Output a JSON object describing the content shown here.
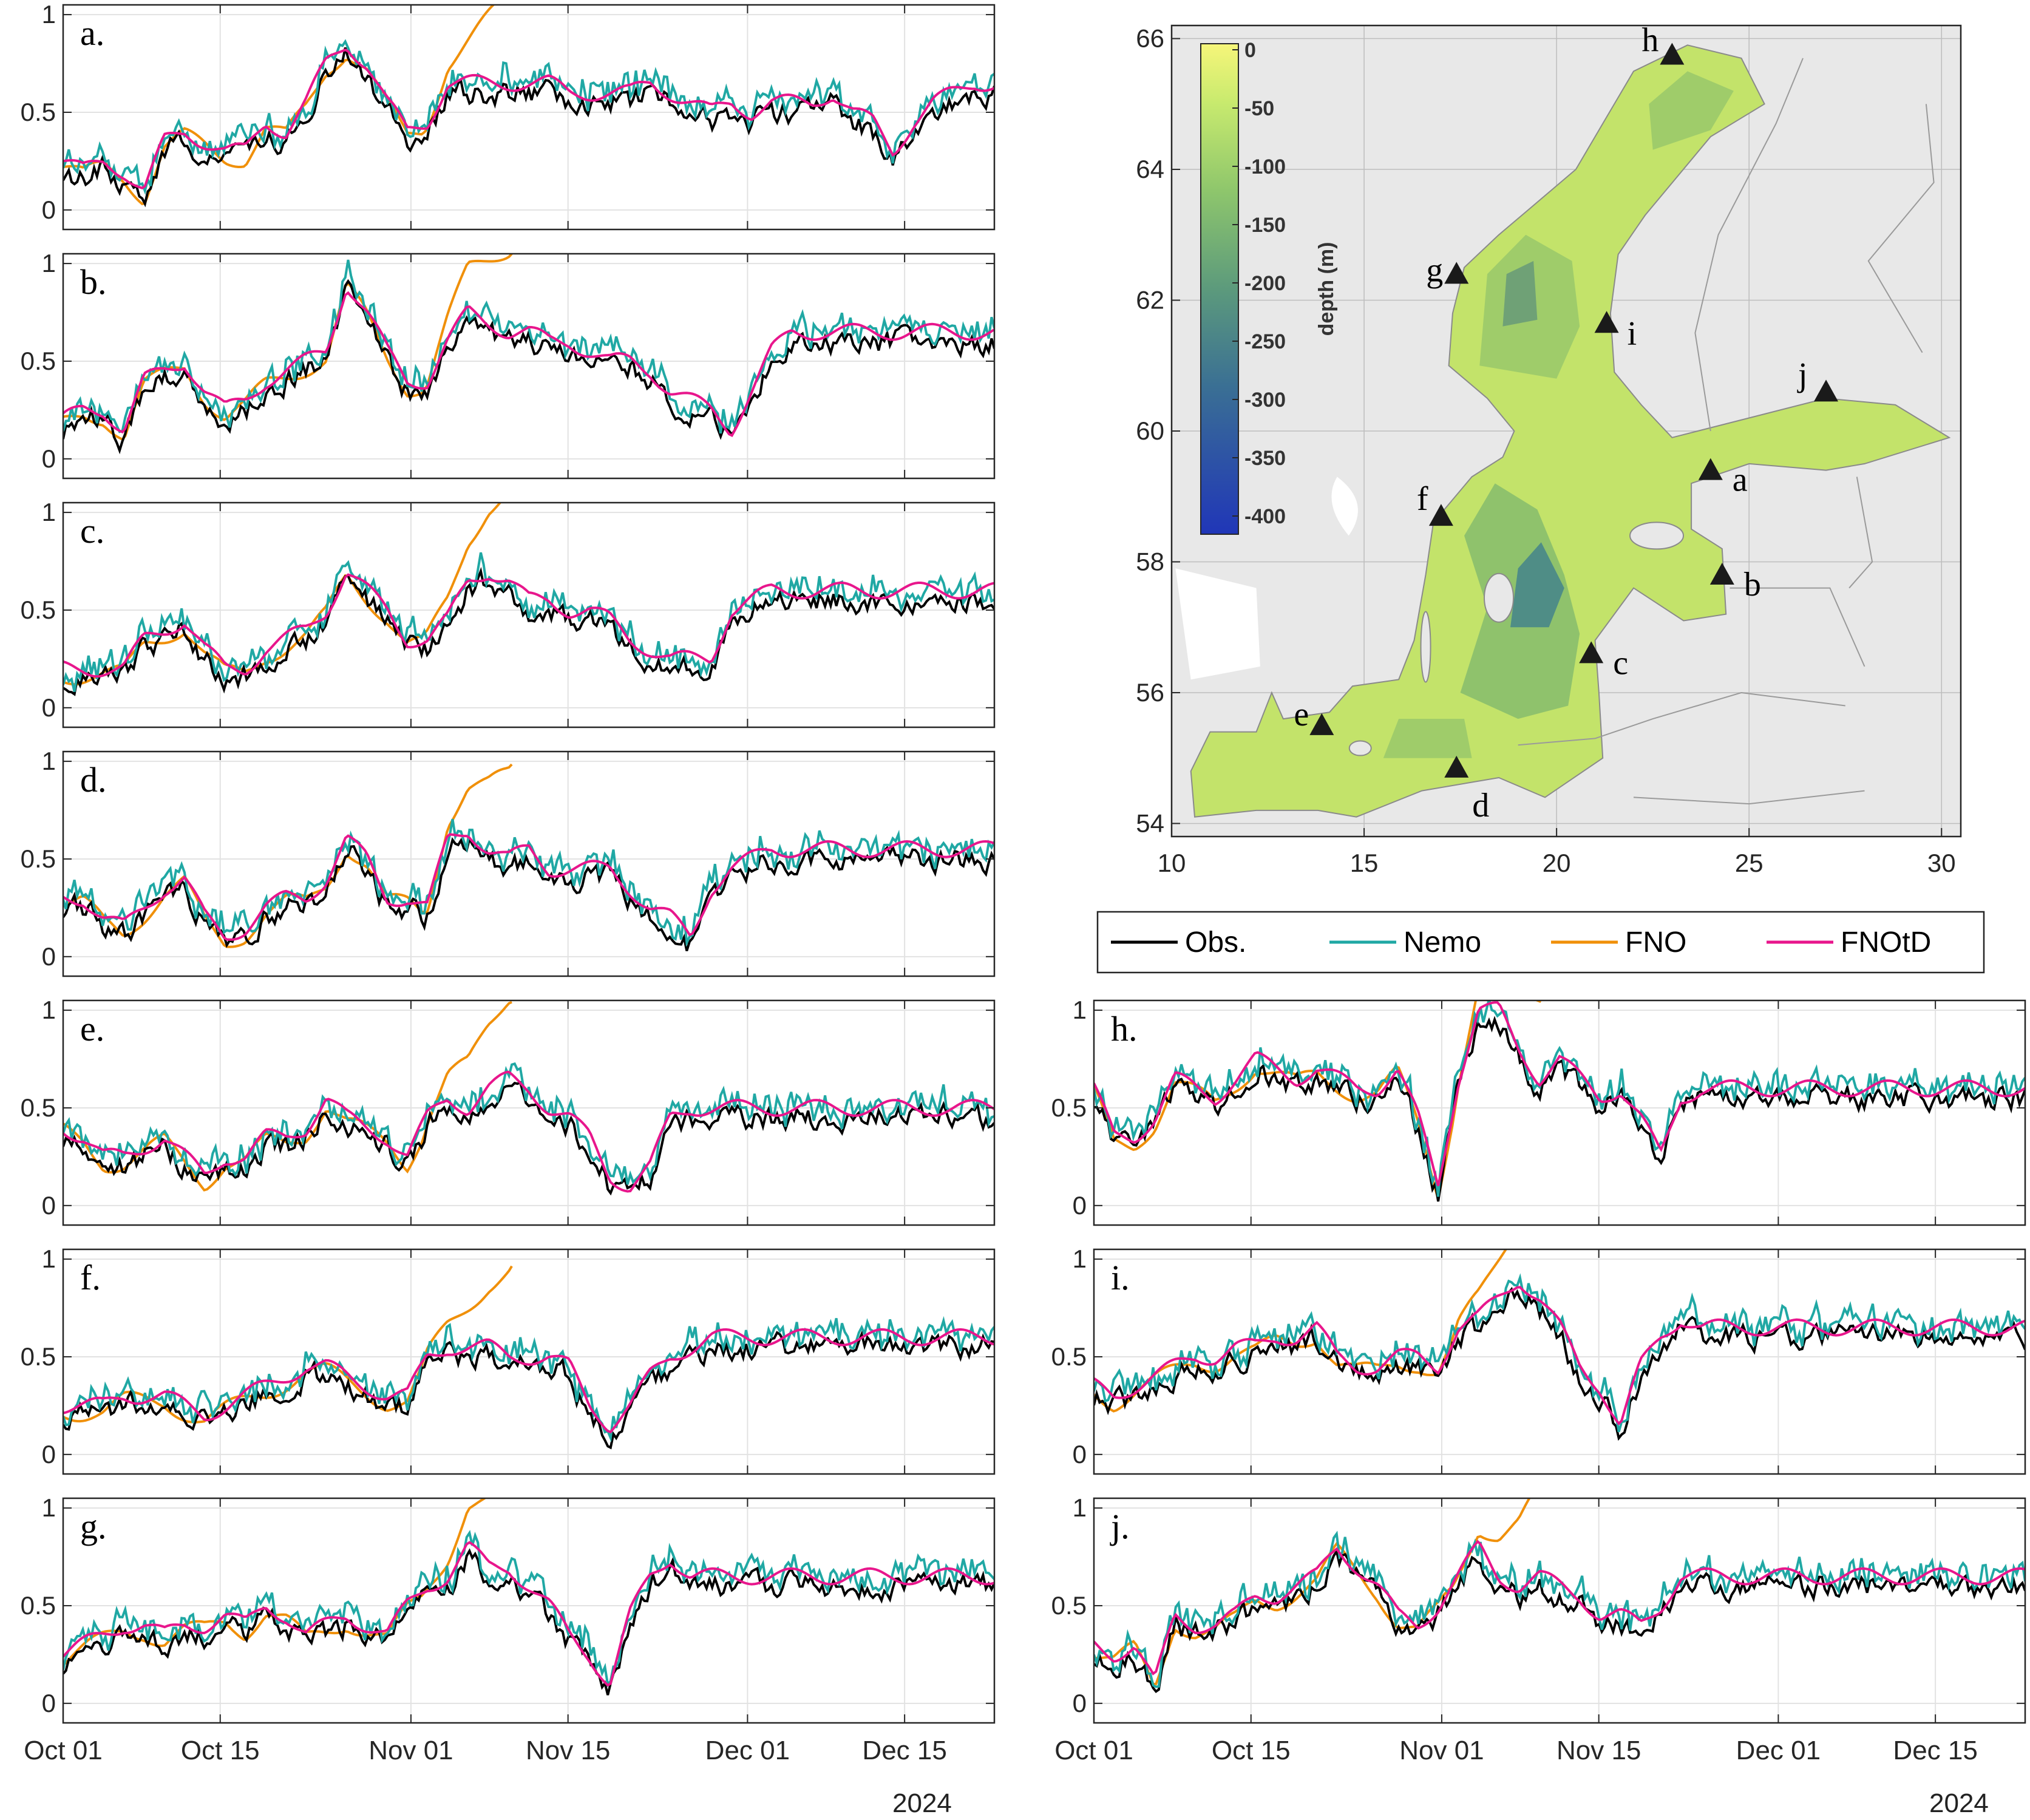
{
  "figure": {
    "year_label": "2024",
    "legend": [
      {
        "key": "obs",
        "label": "Obs.",
        "color": "#000000"
      },
      {
        "key": "nemo",
        "label": "Nemo",
        "color": "#20a8a4"
      },
      {
        "key": "fno",
        "label": "FNO",
        "color": "#f0900a"
      },
      {
        "key": "fnotd",
        "label": "FNOtD",
        "color": "#e8168c"
      }
    ]
  },
  "chart_data": [
    {
      "type": "line",
      "panel": "a.",
      "xlim": [
        "2024-10-01",
        "2024-12-23"
      ],
      "ylim": [
        -0.1,
        1.05
      ],
      "yticks": [
        0,
        0.5,
        1
      ],
      "xticks": [
        "Oct 01",
        "Oct 15",
        "Nov 01",
        "Nov 15",
        "Dec 01",
        "Dec 15"
      ],
      "base": [
        0.2,
        0.15,
        0.2,
        0.15,
        0.05,
        0.3,
        0.35,
        0.3,
        0.25,
        0.25,
        0.4,
        0.35,
        0.5,
        0.7,
        0.8,
        0.7,
        0.5,
        0.35,
        0.4,
        0.6,
        0.6,
        0.6,
        0.6,
        0.6,
        0.6,
        0.55,
        0.55,
        0.55,
        0.55,
        0.6,
        0.55,
        0.5,
        0.45,
        0.5,
        0.45,
        0.5,
        0.5,
        0.5,
        0.55,
        0.45,
        0.4,
        0.25,
        0.4,
        0.5,
        0.55,
        0.6,
        0.6
      ],
      "fno_end": "2024-11-12"
    },
    {
      "type": "line",
      "panel": "b.",
      "xlim": [
        "2024-10-01",
        "2024-12-23"
      ],
      "ylim": [
        -0.1,
        1.05
      ],
      "yticks": [
        0,
        0.5,
        1
      ],
      "xticks": [
        "Oct 01",
        "Oct 15",
        "Nov 01",
        "Nov 15",
        "Dec 01",
        "Dec 15"
      ],
      "base": [
        0.15,
        0.2,
        0.2,
        0.1,
        0.35,
        0.4,
        0.45,
        0.3,
        0.2,
        0.25,
        0.35,
        0.4,
        0.45,
        0.5,
        0.85,
        0.7,
        0.5,
        0.35,
        0.35,
        0.55,
        0.7,
        0.65,
        0.6,
        0.6,
        0.55,
        0.55,
        0.5,
        0.45,
        0.45,
        0.4,
        0.3,
        0.25,
        0.2,
        0.1,
        0.3,
        0.5,
        0.6,
        0.6,
        0.6,
        0.6,
        0.6,
        0.6,
        0.6,
        0.6,
        0.6,
        0.6,
        0.6
      ]
    },
    {
      "type": "line",
      "panel": "c.",
      "xlim": [
        "2024-10-01",
        "2024-12-23"
      ],
      "ylim": [
        -0.1,
        1.05
      ],
      "yticks": [
        0,
        0.5,
        1
      ],
      "xticks": [
        "Oct 01",
        "Oct 15",
        "Nov 01",
        "Nov 15",
        "Dec 01",
        "Dec 15"
      ],
      "base": [
        0.15,
        0.15,
        0.15,
        0.15,
        0.3,
        0.35,
        0.4,
        0.25,
        0.15,
        0.15,
        0.25,
        0.3,
        0.35,
        0.45,
        0.65,
        0.55,
        0.45,
        0.3,
        0.3,
        0.4,
        0.6,
        0.65,
        0.6,
        0.5,
        0.5,
        0.45,
        0.45,
        0.4,
        0.3,
        0.25,
        0.2,
        0.2,
        0.2,
        0.45,
        0.5,
        0.55,
        0.55,
        0.55,
        0.55,
        0.55,
        0.55,
        0.55,
        0.55,
        0.55,
        0.55,
        0.55,
        0.55
      ]
    },
    {
      "type": "line",
      "panel": "d.",
      "xlim": [
        "2024-10-01",
        "2024-12-23"
      ],
      "ylim": [
        -0.1,
        1.05
      ],
      "yticks": [
        0,
        0.5,
        1
      ],
      "xticks": [
        "Oct 01",
        "Oct 15",
        "Nov 01",
        "Nov 15",
        "Dec 01",
        "Dec 15"
      ],
      "base": [
        0.25,
        0.25,
        0.15,
        0.1,
        0.2,
        0.3,
        0.35,
        0.15,
        0.05,
        0.1,
        0.2,
        0.25,
        0.25,
        0.35,
        0.55,
        0.45,
        0.25,
        0.25,
        0.2,
        0.55,
        0.6,
        0.5,
        0.45,
        0.5,
        0.4,
        0.4,
        0.4,
        0.4,
        0.3,
        0.2,
        0.15,
        0.05,
        0.3,
        0.4,
        0.45,
        0.5,
        0.5,
        0.5,
        0.5,
        0.5,
        0.5,
        0.5,
        0.5,
        0.5,
        0.5,
        0.5,
        0.5
      ]
    },
    {
      "type": "line",
      "panel": "e.",
      "xlim": [
        "2024-10-01",
        "2024-12-23"
      ],
      "ylim": [
        -0.1,
        1.05
      ],
      "yticks": [
        0,
        0.5,
        1
      ],
      "xticks": [
        "Oct 01",
        "Oct 15",
        "Nov 01",
        "Nov 15",
        "Dec 01",
        "Dec 15"
      ],
      "base": [
        0.35,
        0.3,
        0.2,
        0.2,
        0.25,
        0.3,
        0.2,
        0.1,
        0.2,
        0.2,
        0.3,
        0.3,
        0.35,
        0.5,
        0.4,
        0.35,
        0.3,
        0.2,
        0.4,
        0.5,
        0.45,
        0.55,
        0.6,
        0.55,
        0.45,
        0.4,
        0.3,
        0.1,
        0.05,
        0.15,
        0.4,
        0.45,
        0.45,
        0.45,
        0.45,
        0.45,
        0.45,
        0.45,
        0.45,
        0.45,
        0.45,
        0.45,
        0.45,
        0.45,
        0.45,
        0.45,
        0.45
      ]
    },
    {
      "type": "line",
      "panel": "f.",
      "xlim": [
        "2024-10-01",
        "2024-12-23"
      ],
      "ylim": [
        -0.1,
        1.05
      ],
      "yticks": [
        0,
        0.5,
        1
      ],
      "xticks": [
        "Oct 01",
        "Oct 15",
        "Nov 01",
        "Nov 15",
        "Dec 01",
        "Dec 15"
      ],
      "base": [
        0.2,
        0.2,
        0.2,
        0.25,
        0.25,
        0.25,
        0.2,
        0.15,
        0.2,
        0.25,
        0.3,
        0.35,
        0.4,
        0.4,
        0.35,
        0.3,
        0.25,
        0.25,
        0.45,
        0.5,
        0.5,
        0.5,
        0.45,
        0.45,
        0.45,
        0.4,
        0.2,
        0.1,
        0.2,
        0.35,
        0.45,
        0.5,
        0.55,
        0.55,
        0.55,
        0.55,
        0.55,
        0.55,
        0.55,
        0.55,
        0.55,
        0.55,
        0.55,
        0.55,
        0.55,
        0.55,
        0.55
      ]
    },
    {
      "type": "line",
      "panel": "g.",
      "xlim": [
        "2024-10-01",
        "2024-12-23"
      ],
      "ylim": [
        -0.1,
        1.05
      ],
      "yticks": [
        0,
        0.5,
        1
      ],
      "xticks": [
        "Oct 01",
        "Oct 15",
        "Nov 01",
        "Nov 15",
        "Dec 01",
        "Dec 15"
      ],
      "base": [
        0.2,
        0.25,
        0.3,
        0.35,
        0.35,
        0.3,
        0.35,
        0.35,
        0.4,
        0.35,
        0.45,
        0.4,
        0.3,
        0.35,
        0.4,
        0.35,
        0.3,
        0.45,
        0.55,
        0.6,
        0.75,
        0.65,
        0.65,
        0.55,
        0.45,
        0.3,
        0.2,
        0.05,
        0.4,
        0.6,
        0.7,
        0.6,
        0.6,
        0.6,
        0.6,
        0.6,
        0.6,
        0.6,
        0.6,
        0.6,
        0.6,
        0.6,
        0.6,
        0.6,
        0.6,
        0.6,
        0.6
      ]
    },
    {
      "type": "line",
      "panel": "h.",
      "xlim": [
        "2024-10-01",
        "2024-12-23"
      ],
      "ylim": [
        -0.1,
        1.05
      ],
      "yticks": [
        0,
        0.5,
        1
      ],
      "xticks": [
        "Oct 01",
        "Oct 15",
        "Nov 01",
        "Nov 15",
        "Dec 01",
        "Dec 15"
      ],
      "base": [
        0.55,
        0.3,
        0.3,
        0.4,
        0.6,
        0.55,
        0.5,
        0.6,
        0.7,
        0.65,
        0.6,
        0.65,
        0.6,
        0.55,
        0.55,
        0.65,
        0.4,
        0.05,
        0.6,
        0.95,
        0.95,
        0.75,
        0.6,
        0.7,
        0.6,
        0.5,
        0.55,
        0.4,
        0.2,
        0.5,
        0.55,
        0.55,
        0.55,
        0.55,
        0.55,
        0.55,
        0.55,
        0.55,
        0.55,
        0.55,
        0.55,
        0.55,
        0.55,
        0.55,
        0.55,
        0.55,
        0.55
      ]
    },
    {
      "type": "line",
      "panel": "i.",
      "xlim": [
        "2024-10-01",
        "2024-12-23"
      ],
      "ylim": [
        -0.1,
        1.05
      ],
      "yticks": [
        0,
        0.5,
        1
      ],
      "xticks": [
        "Oct 01",
        "Oct 15",
        "Nov 01",
        "Nov 15",
        "Dec 01",
        "Dec 15"
      ],
      "base": [
        0.3,
        0.25,
        0.3,
        0.35,
        0.4,
        0.45,
        0.45,
        0.5,
        0.5,
        0.55,
        0.55,
        0.6,
        0.45,
        0.4,
        0.4,
        0.45,
        0.45,
        0.4,
        0.6,
        0.65,
        0.75,
        0.85,
        0.75,
        0.6,
        0.4,
        0.3,
        0.1,
        0.4,
        0.55,
        0.65,
        0.6,
        0.6,
        0.6,
        0.6,
        0.6,
        0.6,
        0.6,
        0.6,
        0.6,
        0.6,
        0.6,
        0.6,
        0.6,
        0.6,
        0.6,
        0.6,
        0.6
      ]
    },
    {
      "type": "line",
      "panel": "j.",
      "xlim": [
        "2024-10-01",
        "2024-12-23"
      ],
      "ylim": [
        -0.1,
        1.05
      ],
      "yticks": [
        0,
        0.5,
        1
      ],
      "xticks": [
        "Oct 01",
        "Oct 15",
        "Nov 01",
        "Nov 15",
        "Dec 01",
        "Dec 15"
      ],
      "base": [
        0.25,
        0.2,
        0.25,
        0.05,
        0.4,
        0.35,
        0.35,
        0.4,
        0.5,
        0.5,
        0.55,
        0.6,
        0.75,
        0.65,
        0.55,
        0.4,
        0.35,
        0.45,
        0.6,
        0.75,
        0.6,
        0.55,
        0.6,
        0.55,
        0.5,
        0.4,
        0.4,
        0.35,
        0.45,
        0.6,
        0.6,
        0.6,
        0.6,
        0.6,
        0.6,
        0.6,
        0.6,
        0.6,
        0.6,
        0.6,
        0.6,
        0.6,
        0.6,
        0.6,
        0.6,
        0.6,
        0.6
      ]
    }
  ],
  "map": {
    "xticks": [
      10,
      15,
      20,
      25,
      30
    ],
    "yticks": [
      54,
      56,
      58,
      60,
      62,
      64,
      66
    ],
    "xlim": [
      10,
      30.5
    ],
    "ylim": [
      53.8,
      66.2
    ],
    "colorbar": {
      "label": "depth (m)",
      "ticks": [
        "0",
        "-50",
        "-100",
        "-150",
        "-200",
        "-250",
        "-300",
        "-350",
        "-400"
      ]
    },
    "stations": [
      {
        "label": "a",
        "lon": 24.0,
        "lat": 59.4
      },
      {
        "label": "b",
        "lon": 24.3,
        "lat": 57.8
      },
      {
        "label": "c",
        "lon": 20.9,
        "lat": 56.6
      },
      {
        "label": "d",
        "lon": 17.4,
        "lat": 54.85
      },
      {
        "label": "e",
        "lon": 13.9,
        "lat": 55.5
      },
      {
        "label": "f",
        "lon": 17.0,
        "lat": 58.7
      },
      {
        "label": "g",
        "lon": 17.4,
        "lat": 62.4
      },
      {
        "label": "h",
        "lon": 23.0,
        "lat": 65.75
      },
      {
        "label": "i",
        "lon": 21.3,
        "lat": 61.65
      },
      {
        "label": "j",
        "lon": 27.0,
        "lat": 60.6
      }
    ]
  }
}
